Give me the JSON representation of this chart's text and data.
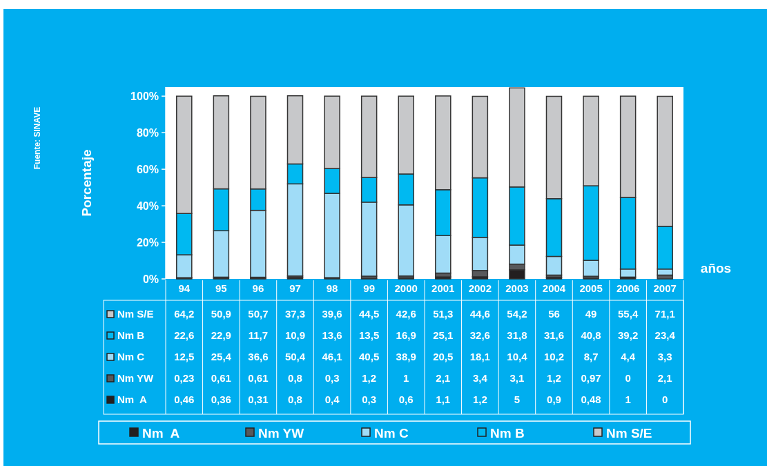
{
  "chart_data": {
    "type": "bar",
    "stacked": true,
    "xlabel": "años",
    "ylabel": "Porcentaje",
    "annotations": [
      "Fuente: SINAVE"
    ],
    "categories": [
      "94",
      "95",
      "96",
      "97",
      "98",
      "99",
      "2000",
      "2001",
      "2002",
      "2003",
      "2004",
      "2005",
      "2006",
      "2007"
    ],
    "ylim": [
      0,
      105
    ],
    "yticks": [
      {
        "value": 0,
        "label": "0%"
      },
      {
        "value": 20,
        "label": "20%"
      },
      {
        "value": 40,
        "label": "40%"
      },
      {
        "value": 60,
        "label": "60%"
      },
      {
        "value": 80,
        "label": "80%"
      },
      {
        "value": 100,
        "label": "100%"
      }
    ],
    "legend": "bottom",
    "grid": false,
    "series": [
      {
        "name": "Nm  A",
        "color": "#231f20",
        "values": [
          0.46,
          0.36,
          0.31,
          0.8,
          0.4,
          0.3,
          0.6,
          1.1,
          1.2,
          5,
          0.9,
          0.48,
          1,
          0
        ],
        "value_labels": [
          "0,46",
          "0,36",
          "0,31",
          "0,8",
          "0,4",
          "0,3",
          "0,6",
          "1,1",
          "1,2",
          "5",
          "0,9",
          "0,48",
          "1",
          "0"
        ]
      },
      {
        "name": "Nm YW",
        "color": "#58595b",
        "values": [
          0.23,
          0.61,
          0.61,
          0.8,
          0.3,
          1.2,
          1,
          2.1,
          3.4,
          3.1,
          1.2,
          0.97,
          0,
          2.1
        ],
        "value_labels": [
          "0,23",
          "0,61",
          "0,61",
          "0,8",
          "0,3",
          "1,2",
          "1",
          "2,1",
          "3,4",
          "3,1",
          "1,2",
          "0,97",
          "0",
          "2,1"
        ]
      },
      {
        "name": "Nm C",
        "color": "#a0dcf7",
        "values": [
          12.5,
          25.4,
          36.6,
          50.4,
          46.1,
          40.5,
          38.9,
          20.5,
          18.1,
          10.4,
          10.2,
          8.7,
          4.4,
          3.3
        ],
        "value_labels": [
          "12,5",
          "25,4",
          "36,6",
          "50,4",
          "46,1",
          "40,5",
          "38,9",
          "20,5",
          "18,1",
          "10,4",
          "10,2",
          "8,7",
          "4,4",
          "3,3"
        ]
      },
      {
        "name": "Nm B",
        "color": "#00b9f1",
        "values": [
          22.6,
          22.9,
          11.7,
          10.9,
          13.6,
          13.5,
          16.9,
          25.1,
          32.6,
          31.8,
          31.6,
          40.8,
          39.2,
          23.4
        ],
        "value_labels": [
          "22,6",
          "22,9",
          "11,7",
          "10,9",
          "13,6",
          "13,5",
          "16,9",
          "25,1",
          "32,6",
          "31,8",
          "31,6",
          "40,8",
          "39,2",
          "23,4"
        ]
      },
      {
        "name": "Nm S/E",
        "color": "#c7c8ca",
        "values": [
          64.2,
          50.9,
          50.7,
          37.3,
          39.6,
          44.5,
          42.6,
          51.3,
          44.6,
          54.2,
          56,
          49,
          55.4,
          71.1
        ],
        "value_labels": [
          "64,2",
          "50,9",
          "50,7",
          "37,3",
          "39,6",
          "44,5",
          "42,6",
          "51,3",
          "44,6",
          "54,2",
          "56",
          "49",
          "55,4",
          "71,1"
        ]
      }
    ]
  }
}
